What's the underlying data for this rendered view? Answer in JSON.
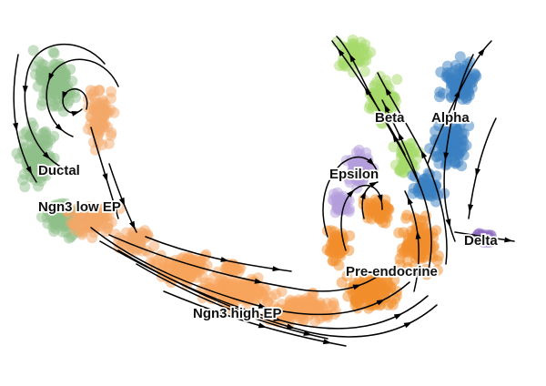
{
  "figure": {
    "type": "scatter with velocity streamlines",
    "clusters": [
      {
        "key": "ductal",
        "label": "Ductal",
        "color": "#8fbf8a"
      },
      {
        "key": "ngn3_low",
        "label": "Ngn3 low EP",
        "color": "#f4a868"
      },
      {
        "key": "ngn3_high",
        "label": "Ngn3 high EP",
        "color": "#f7a35c"
      },
      {
        "key": "pre_endocrine",
        "label": "Pre-endocrine",
        "color": "#f28e2b"
      },
      {
        "key": "beta",
        "label": "Beta",
        "color": "#a6d96a"
      },
      {
        "key": "alpha",
        "label": "Alpha",
        "color": "#3a7fc1"
      },
      {
        "key": "delta",
        "label": "Delta",
        "color": "#8e6cc0"
      },
      {
        "key": "epsilon",
        "label": "Epsilon",
        "color": "#b39ddb"
      }
    ],
    "streamline_color": "#000000"
  }
}
